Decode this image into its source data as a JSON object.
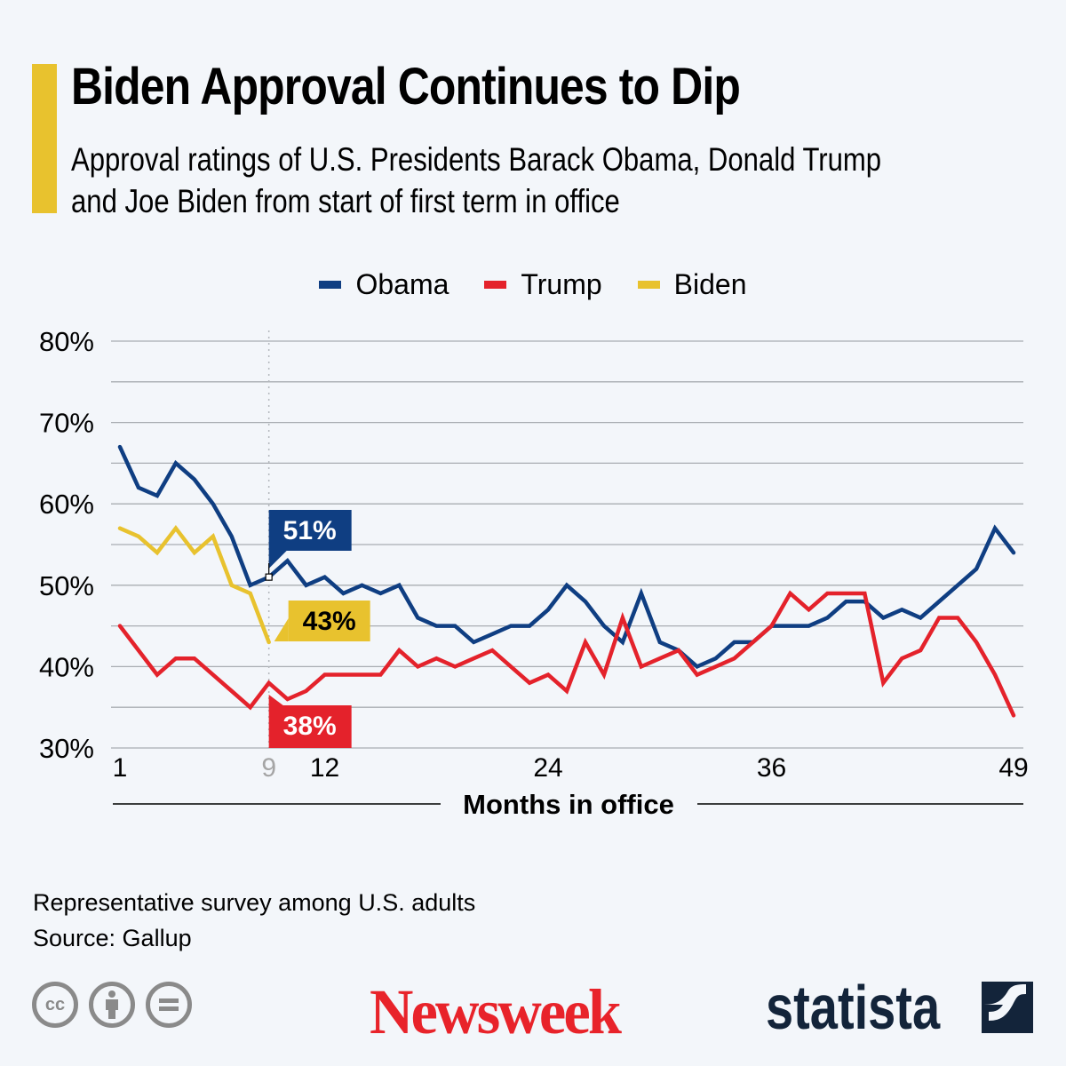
{
  "header": {
    "title": "Biden Approval Continues to Dip",
    "subtitle_line1": "Approval ratings of U.S. Presidents Barack Obama, Donald Trump",
    "subtitle_line2": "and Joe Biden from start of first term in office"
  },
  "colors": {
    "obama": "#0f3e82",
    "trump": "#e4222b",
    "biden": "#e8c22e",
    "accent": "#e8c22e",
    "background": "#f3f6fa",
    "newsweek": "#e8232a",
    "statista": "#13243a"
  },
  "chart_data": {
    "type": "line",
    "title": "Biden Approval Continues to Dip",
    "xlabel": "Months in office",
    "ylabel": "",
    "ylim": [
      30,
      80
    ],
    "xlim": [
      1,
      49
    ],
    "y_ticks": [
      "80%",
      "70%",
      "60%",
      "50%",
      "40%",
      "30%"
    ],
    "y_tick_values": [
      80,
      70,
      60,
      50,
      40,
      30
    ],
    "y_gridlines": [
      80,
      75,
      70,
      65,
      60,
      55,
      50,
      45,
      40,
      35,
      30
    ],
    "x_ticks": [
      {
        "value": 1,
        "label": "1",
        "muted": false
      },
      {
        "value": 9,
        "label": "9",
        "muted": true
      },
      {
        "value": 12,
        "label": "12",
        "muted": false
      },
      {
        "value": 24,
        "label": "24",
        "muted": false
      },
      {
        "value": 36,
        "label": "36",
        "muted": false
      },
      {
        "value": 49,
        "label": "49",
        "muted": false
      }
    ],
    "grid": true,
    "legend_position": "top-center",
    "marker_month": 9,
    "series": [
      {
        "name": "Obama",
        "color": "#0f3e82",
        "x_start": 1,
        "values": [
          67,
          62,
          61,
          65,
          63,
          60,
          56,
          50,
          51,
          53,
          50,
          51,
          49,
          50,
          49,
          50,
          46,
          45,
          45,
          43,
          44,
          45,
          45,
          47,
          50,
          48,
          45,
          43,
          49,
          43,
          42,
          40,
          41,
          43,
          43,
          45,
          45,
          45,
          46,
          48,
          48,
          46,
          47,
          46,
          48,
          50,
          52,
          57,
          54
        ]
      },
      {
        "name": "Trump",
        "color": "#e4222b",
        "x_start": 1,
        "values": [
          45,
          42,
          39,
          41,
          41,
          39,
          37,
          35,
          38,
          36,
          37,
          39,
          39,
          39,
          39,
          42,
          40,
          41,
          40,
          41,
          42,
          40,
          38,
          39,
          37,
          43,
          39,
          46,
          40,
          41,
          42,
          39,
          40,
          41,
          43,
          45,
          49,
          47,
          49,
          49,
          49,
          38,
          41,
          42,
          46,
          46,
          43,
          39,
          34
        ]
      },
      {
        "name": "Biden",
        "color": "#e8c22e",
        "x_start": 1,
        "values": [
          57,
          56,
          54,
          57,
          54,
          56,
          50,
          49,
          43
        ]
      }
    ],
    "annotations": [
      {
        "series": "Obama",
        "month": 9,
        "label": "51%"
      },
      {
        "series": "Biden",
        "month": 9,
        "label": "43%"
      },
      {
        "series": "Trump",
        "month": 9,
        "label": "38%"
      }
    ]
  },
  "legend": [
    {
      "label": "Obama"
    },
    {
      "label": "Trump"
    },
    {
      "label": "Biden"
    }
  ],
  "footer": {
    "note": "Representative survey among U.S. adults",
    "source": "Source: Gallup",
    "license_icons": [
      "cc-icon",
      "attribution-icon",
      "no-derivatives-icon"
    ],
    "cc_label": "cc",
    "newsweek_logo": "Newsweek",
    "statista_logo": "statista"
  }
}
